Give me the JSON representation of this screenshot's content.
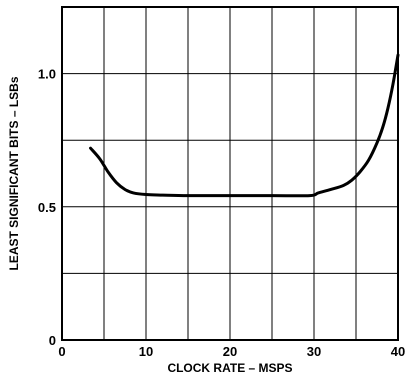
{
  "colors": {
    "line": "#000000",
    "grid": "#000000",
    "background": "#ffffff"
  },
  "chart_data": {
    "type": "line",
    "title": "",
    "xlabel": "CLOCK RATE – MSPS",
    "ylabel": "LEAST SIGNIFICANT BITS – LSBs",
    "xlim": [
      0,
      40
    ],
    "ylim": [
      0,
      1.25
    ],
    "x_ticks": [
      0,
      10,
      20,
      30,
      40
    ],
    "x_tick_labels": [
      "0",
      "10",
      "20",
      "30",
      "40"
    ],
    "y_ticks": [
      0,
      0.5,
      1.0
    ],
    "y_tick_labels": [
      "0",
      "0.5",
      "1.0"
    ],
    "grid": true,
    "x_grid_step": 5,
    "y_grid_step": 0.25,
    "legend": "none",
    "series": [
      {
        "x": [
          3.4,
          4.5,
          5.5,
          6.5,
          7.5,
          8.5,
          10,
          12,
          15,
          20,
          25,
          29.5,
          30.5,
          32,
          33.5,
          34.5,
          35.5,
          36.5,
          37.5,
          38.2,
          38.8,
          39.4,
          40
        ],
        "y": [
          0.72,
          0.68,
          0.63,
          0.59,
          0.565,
          0.552,
          0.546,
          0.544,
          0.542,
          0.542,
          0.542,
          0.542,
          0.552,
          0.565,
          0.58,
          0.6,
          0.632,
          0.675,
          0.74,
          0.8,
          0.87,
          0.96,
          1.07
        ]
      }
    ]
  }
}
